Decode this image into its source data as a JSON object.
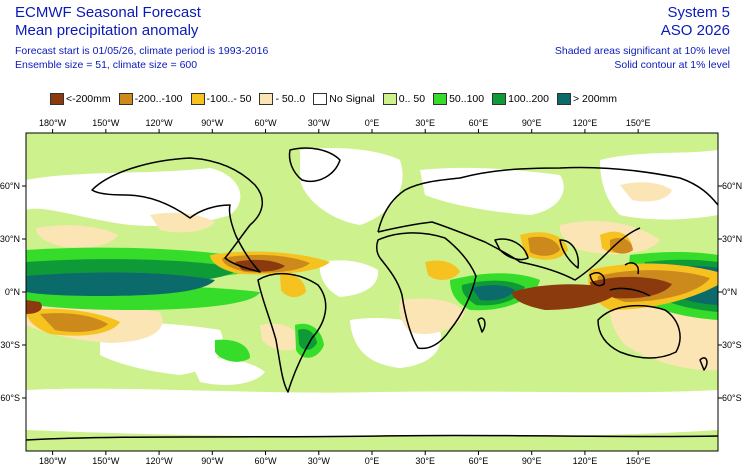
{
  "header": {
    "title": "ECMWF Seasonal Forecast",
    "subtitle": "Mean precipitation anomaly",
    "forecast_line": "Forecast start is 01/05/26, climate period is 1993-2016",
    "ensemble_line": "Ensemble size = 51, climate size = 600",
    "system": "System 5",
    "season": "ASO 2026",
    "note_shaded": "Shaded areas significant at 10% level",
    "note_contour": "Solid contour at 1% level"
  },
  "legend": [
    {
      "label": "<-200mm",
      "color": "#8b3a0e"
    },
    {
      "label": "-200..-100",
      "color": "#cd8a1c"
    },
    {
      "label": "-100..- 50",
      "color": "#f6c21f"
    },
    {
      "label": "- 50..0",
      "color": "#fbe5b4"
    },
    {
      "label": "No Signal",
      "color": "#ffffff"
    },
    {
      "label": "0.. 50",
      "color": "#cdf18c"
    },
    {
      "label": "50..100",
      "color": "#35dc2a"
    },
    {
      "label": "100..200",
      "color": "#0e9a37"
    },
    {
      "label": "> 200mm",
      "color": "#0b6b6a"
    }
  ],
  "map": {
    "lon_labels": [
      "180°W",
      "150°W",
      "120°W",
      "90°W",
      "60°W",
      "30°W",
      "0°E",
      "30°E",
      "60°E",
      "90°E",
      "120°E",
      "150°E"
    ],
    "lat_labels": [
      "60°N",
      "30°N",
      "0°N",
      "30°S",
      "60°S"
    ],
    "lon_range": [
      -195,
      195
    ],
    "lat_range": [
      -90,
      90
    ]
  }
}
